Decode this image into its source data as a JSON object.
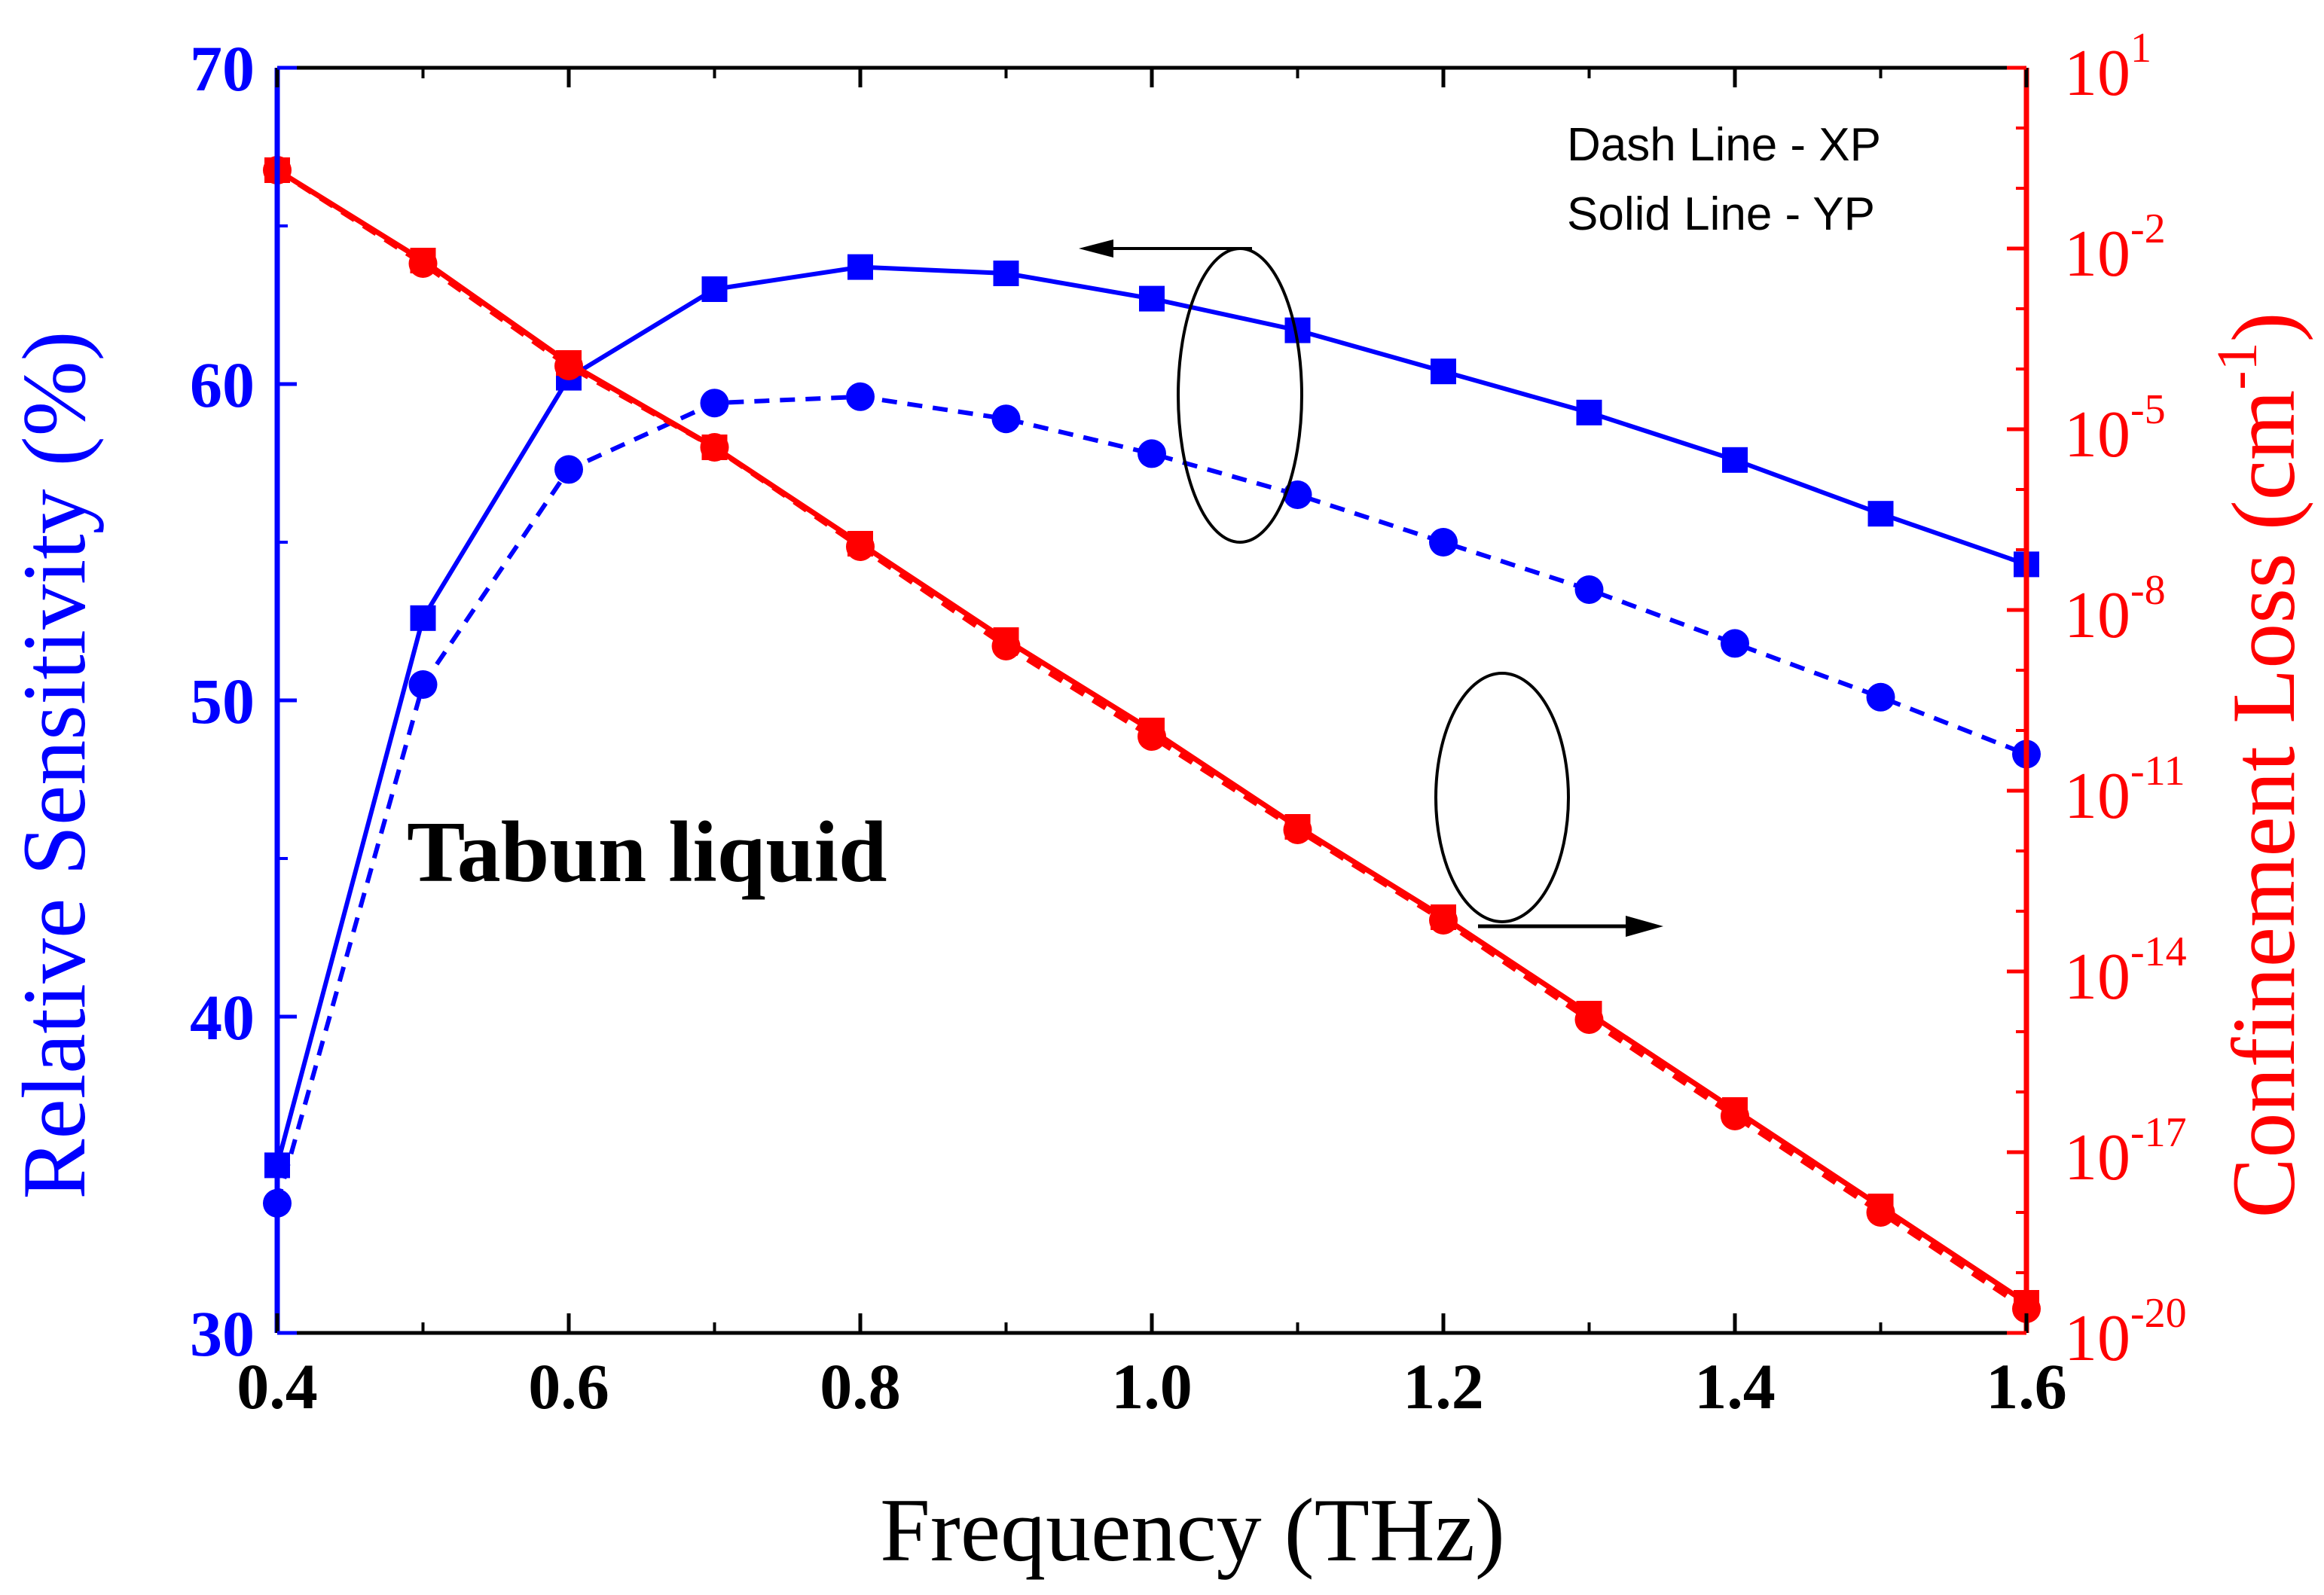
{
  "chart_data": {
    "type": "line",
    "colors": {
      "left_axis": "#0000ff",
      "right_axis": "#ff0000",
      "black": "#000000"
    },
    "x": [
      0.4,
      0.5,
      0.6,
      0.7,
      0.8,
      0.9,
      1.0,
      1.1,
      1.2,
      1.3,
      1.4,
      1.5,
      1.6
    ],
    "xlim": [
      0.4,
      1.6
    ],
    "xticks": [
      "0.4",
      "0.6",
      "0.8",
      "1.0",
      "1.2",
      "1.4",
      "1.6"
    ],
    "xlabel": "Frequency (THz)",
    "y_left": {
      "label": "Relative Sensitivity (%)",
      "lim": [
        30,
        70
      ],
      "ticks": [
        "30",
        "40",
        "50",
        "60",
        "70"
      ]
    },
    "y_right": {
      "label_main": "Confinement Loss (cm",
      "label_exp": "-1",
      "label_close": ")",
      "scale": "log",
      "lim_exponent": [
        -20,
        1
      ],
      "ticks": [
        {
          "base": "10",
          "exp": "1"
        },
        {
          "base": "10",
          "exp": "-2"
        },
        {
          "base": "10",
          "exp": "-5"
        },
        {
          "base": "10",
          "exp": "-8"
        },
        {
          "base": "10",
          "exp": "-11"
        },
        {
          "base": "10",
          "exp": "-14"
        },
        {
          "base": "10",
          "exp": "-17"
        },
        {
          "base": "10",
          "exp": "-20"
        }
      ]
    },
    "series": [
      {
        "name": "Relative Sensitivity YP",
        "axis": "left",
        "style": "solid",
        "marker": "square",
        "color": "#0000ff",
        "values": [
          35.3,
          52.6,
          60.2,
          63.0,
          63.7,
          63.5,
          62.7,
          61.7,
          60.4,
          59.1,
          57.6,
          55.9,
          54.3
        ]
      },
      {
        "name": "Relative Sensitivity XP",
        "axis": "left",
        "style": "dash",
        "marker": "circle",
        "color": "#0000ff",
        "values": [
          34.1,
          50.5,
          57.3,
          59.4,
          59.6,
          58.9,
          57.8,
          56.5,
          55.0,
          53.5,
          51.8,
          50.1,
          48.3
        ]
      },
      {
        "name": "Confinement Loss YP",
        "axis": "right",
        "style": "solid",
        "marker": "square",
        "color": "#ff0000",
        "log10_values": [
          -0.7,
          -2.2,
          -3.9,
          -5.3,
          -6.9,
          -8.5,
          -10.0,
          -11.6,
          -13.1,
          -14.7,
          -16.3,
          -17.9,
          -19.5
        ]
      },
      {
        "name": "Confinement Loss XP",
        "axis": "right",
        "style": "dash",
        "marker": "circle",
        "color": "#ff0000",
        "log10_values": [
          -0.7,
          -2.25,
          -3.95,
          -5.3,
          -6.95,
          -8.6,
          -10.1,
          -11.65,
          -13.15,
          -14.8,
          -16.4,
          -18.0,
          -19.6
        ]
      }
    ],
    "legend": [
      "Dash Line - XP",
      "Solid Line - YP"
    ],
    "annotation": "Tabun liquid"
  }
}
